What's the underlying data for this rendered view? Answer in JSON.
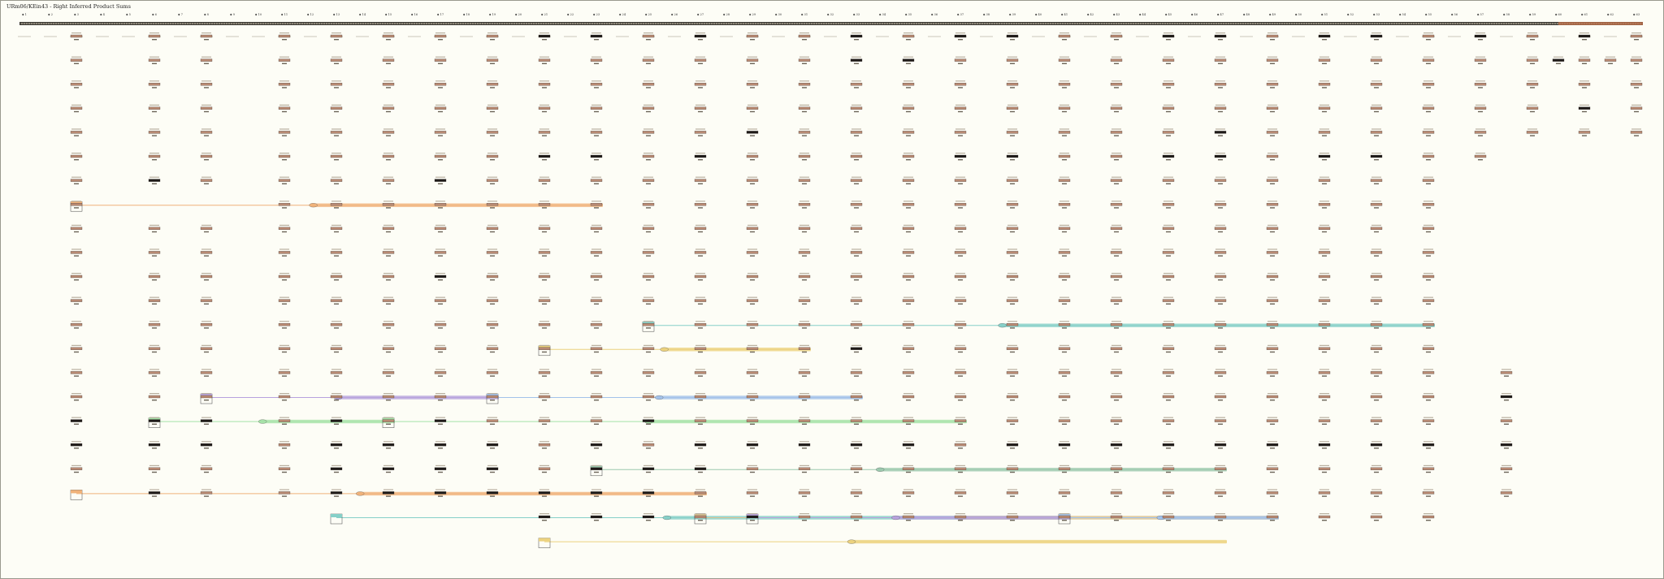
{
  "title": "URm06/KEin43 - Right Inferred Product Sums",
  "steps": [
    "1",
    "2",
    "3",
    "4",
    "5",
    "6",
    "7",
    "8",
    "9",
    "10",
    "11",
    "12",
    "13",
    "14",
    "15",
    "16",
    "17",
    "18",
    "19",
    "20",
    "21",
    "22",
    "23",
    "24",
    "25",
    "26",
    "27",
    "28",
    "29",
    "30",
    "31",
    "32",
    "33",
    "34",
    "35",
    "36",
    "37",
    "38",
    "39",
    "40",
    "41",
    "42",
    "43",
    "44",
    "45",
    "46",
    "47",
    "48",
    "49",
    "50",
    "51",
    "52",
    "53",
    "54",
    "55",
    "56",
    "57",
    "58",
    "59",
    "60",
    "61",
    "62",
    "63"
  ],
  "colors": {
    "background": "#fdfdf6",
    "ruler": "#6f6a5e",
    "ruler_highlight": "#c0704a",
    "cell_sum_default": "#b98a73",
    "cell_sum_zero": "#1e1a18",
    "orange": "#f0b27a",
    "teal": "#86d0c8",
    "yellow": "#ecd27e",
    "purple": "#b7a2dd",
    "blue": "#a3c2ea",
    "green": "#a6e2a8",
    "sage": "#9cc9ae",
    "tan": "#d8c190"
  },
  "rows": [
    {
      "row": 0,
      "cols": [
        2,
        5,
        7,
        10,
        12,
        14,
        16,
        18,
        20,
        22,
        24,
        26,
        28,
        30,
        32,
        34,
        36,
        38,
        40,
        42,
        44,
        46,
        48,
        50,
        52,
        54,
        56,
        58,
        60,
        62
      ],
      "dark": [
        20,
        22,
        26,
        32,
        36,
        38,
        44,
        46,
        50,
        52,
        56,
        60
      ]
    },
    {
      "row": 1,
      "cols": [
        2,
        5,
        7,
        10,
        12,
        14,
        16,
        18,
        20,
        22,
        24,
        26,
        28,
        30,
        32,
        34,
        36,
        38,
        40,
        42,
        44,
        46,
        48,
        50,
        52,
        54,
        56,
        58,
        59,
        60,
        61,
        62
      ],
      "dark": [
        32,
        34,
        59
      ]
    },
    {
      "row": 2,
      "cols": [
        2,
        5,
        7,
        10,
        12,
        14,
        16,
        18,
        20,
        22,
        24,
        26,
        28,
        30,
        32,
        34,
        36,
        38,
        40,
        42,
        44,
        46,
        48,
        50,
        52,
        54,
        56,
        58,
        60,
        62
      ],
      "dark": []
    },
    {
      "row": 3,
      "cols": [
        2,
        5,
        7,
        10,
        12,
        14,
        16,
        18,
        20,
        22,
        24,
        26,
        28,
        30,
        32,
        34,
        36,
        38,
        40,
        42,
        44,
        46,
        48,
        50,
        52,
        54,
        56,
        58,
        60,
        62
      ],
      "dark": [
        60
      ]
    },
    {
      "row": 4,
      "cols": [
        2,
        5,
        7,
        10,
        12,
        14,
        16,
        18,
        20,
        22,
        24,
        26,
        28,
        30,
        32,
        34,
        36,
        38,
        40,
        42,
        44,
        46,
        48,
        50,
        52,
        54,
        56,
        58,
        60,
        62
      ],
      "dark": [
        28,
        46
      ]
    },
    {
      "row": 5,
      "cols": [
        2,
        5,
        7,
        10,
        12,
        14,
        16,
        18,
        20,
        22,
        24,
        26,
        28,
        30,
        32,
        34,
        36,
        38,
        40,
        42,
        44,
        46,
        48,
        50,
        52,
        54,
        56
      ],
      "dark": [
        20,
        22,
        26,
        36,
        38,
        44,
        46,
        50,
        52
      ]
    },
    {
      "row": 6,
      "cols": [
        2,
        5,
        7,
        10,
        12,
        14,
        16,
        18,
        20,
        22,
        24,
        26,
        28,
        30,
        32,
        34,
        36,
        38,
        40,
        42,
        44,
        46,
        48,
        50,
        52,
        54
      ],
      "dark": [
        5,
        16
      ]
    },
    {
      "row": 7,
      "cols": [
        2,
        10,
        12,
        14,
        16,
        18,
        20,
        22,
        24,
        26,
        28,
        30,
        32,
        34,
        36,
        38,
        40,
        42,
        44,
        46,
        48,
        50,
        52,
        54
      ],
      "dark": []
    },
    {
      "row": 8,
      "cols": [
        2,
        5,
        7,
        10,
        12,
        14,
        16,
        18,
        20,
        22,
        24,
        26,
        28,
        30,
        32,
        34,
        36,
        38,
        40,
        42,
        44,
        46,
        48,
        50,
        52,
        54
      ],
      "dark": []
    },
    {
      "row": 9,
      "cols": [
        2,
        5,
        7,
        10,
        12,
        14,
        16,
        18,
        20,
        22,
        24,
        26,
        28,
        30,
        32,
        34,
        36,
        38,
        40,
        42,
        44,
        46,
        48,
        50,
        52,
        54
      ],
      "dark": []
    },
    {
      "row": 10,
      "cols": [
        2,
        5,
        7,
        10,
        12,
        14,
        16,
        18,
        20,
        22,
        24,
        26,
        28,
        30,
        32,
        34,
        36,
        38,
        40,
        42,
        44,
        46,
        48,
        50,
        52,
        54
      ],
      "dark": [
        16
      ]
    },
    {
      "row": 11,
      "cols": [
        2,
        5,
        7,
        10,
        12,
        14,
        16,
        18,
        20,
        22,
        24,
        26,
        28,
        30,
        32,
        34,
        36,
        38,
        40,
        42,
        44,
        46,
        48,
        50,
        52,
        54
      ],
      "dark": []
    },
    {
      "row": 12,
      "cols": [
        2,
        5,
        7,
        10,
        12,
        14,
        16,
        18,
        20,
        22,
        24,
        26,
        28,
        30,
        32,
        34,
        36,
        38,
        40,
        42,
        44,
        46,
        48,
        50,
        52,
        54
      ],
      "dark": []
    },
    {
      "row": 13,
      "cols": [
        2,
        5,
        7,
        10,
        12,
        14,
        16,
        18,
        20,
        22,
        24,
        26,
        28,
        30,
        32,
        34,
        36,
        38,
        40,
        42,
        44,
        46,
        48,
        50,
        52,
        54
      ],
      "dark": [
        32
      ]
    },
    {
      "row": 14,
      "cols": [
        2,
        5,
        7,
        10,
        12,
        14,
        16,
        18,
        20,
        22,
        24,
        26,
        28,
        30,
        32,
        34,
        36,
        38,
        40,
        42,
        44,
        46,
        48,
        50,
        52,
        54,
        57
      ],
      "dark": []
    },
    {
      "row": 15,
      "cols": [
        2,
        5,
        7,
        10,
        12,
        14,
        16,
        18,
        20,
        22,
        24,
        26,
        28,
        30,
        32,
        34,
        36,
        38,
        40,
        42,
        44,
        46,
        48,
        50,
        52,
        54,
        57
      ],
      "dark": [
        57
      ]
    },
    {
      "row": 16,
      "cols": [
        2,
        5,
        7,
        10,
        12,
        14,
        16,
        18,
        20,
        22,
        24,
        26,
        28,
        30,
        32,
        34,
        36,
        38,
        40,
        42,
        44,
        46,
        48,
        50,
        52,
        54,
        57
      ],
      "dark": [
        2,
        5,
        7,
        12,
        16,
        24
      ]
    },
    {
      "row": 17,
      "cols": [
        2,
        5,
        7,
        10,
        12,
        14,
        16,
        18,
        20,
        22,
        24,
        26,
        28,
        30,
        32,
        34,
        36,
        38,
        40,
        42,
        44,
        46,
        48,
        50,
        52,
        54,
        57
      ],
      "dark": [
        2,
        5,
        7,
        12,
        14,
        16,
        18,
        22,
        26,
        28,
        30,
        32,
        34,
        38,
        40,
        42,
        44,
        46,
        48,
        50,
        52,
        54,
        57
      ]
    },
    {
      "row": 18,
      "cols": [
        2,
        5,
        7,
        10,
        12,
        14,
        16,
        18,
        20,
        22,
        24,
        26,
        28,
        30,
        32,
        34,
        36,
        38,
        40,
        42,
        44,
        46,
        48,
        50,
        52,
        54,
        57
      ],
      "dark": [
        12,
        14,
        16,
        18,
        22,
        24,
        26
      ]
    },
    {
      "row": 19,
      "cols": [
        5,
        7,
        10,
        12,
        14,
        16,
        18,
        20,
        22,
        24,
        26,
        28,
        30,
        32,
        34,
        36,
        38,
        40,
        42,
        44,
        46,
        48,
        50,
        52,
        54,
        57
      ],
      "dark": [
        5,
        12,
        14,
        16,
        18,
        20,
        22,
        24
      ]
    },
    {
      "row": 20,
      "cols": [
        20,
        22,
        24,
        26,
        28,
        30,
        32,
        34,
        36,
        38,
        40,
        42,
        44,
        46,
        48,
        50,
        52,
        54
      ],
      "dark": [
        20,
        22,
        24,
        28
      ]
    }
  ],
  "ranges": [
    {
      "row": 7,
      "start": 2,
      "end": 22,
      "color": "orange",
      "box": true
    },
    {
      "row": 12,
      "start": 24,
      "end": 54,
      "color": "teal",
      "box": true
    },
    {
      "row": 13,
      "start": 20,
      "end": 30,
      "color": "yellow",
      "box": true
    },
    {
      "row": 15,
      "start": 7,
      "end": 18,
      "color": "purple",
      "box": true
    },
    {
      "row": 15,
      "start": 18,
      "end": 32,
      "color": "blue",
      "box": true
    },
    {
      "row": 16,
      "start": 5,
      "end": 14,
      "color": "green",
      "box": true
    },
    {
      "row": 16,
      "start": 14,
      "end": 36,
      "color": "green",
      "box": true
    },
    {
      "row": 18,
      "start": 22,
      "end": 46,
      "color": "sage",
      "box": true
    },
    {
      "row": 19,
      "start": 2,
      "end": 26,
      "color": "orange",
      "box": true
    },
    {
      "row": 20,
      "start": 12,
      "end": 40,
      "color": "teal",
      "box": true
    },
    {
      "row": 20,
      "start": 26,
      "end": 48,
      "color": "tan",
      "box": true
    },
    {
      "row": 20,
      "start": 28,
      "end": 40,
      "color": "purple",
      "box": true
    },
    {
      "row": 20,
      "start": 40,
      "end": 48,
      "color": "blue",
      "box": true
    },
    {
      "row": 21,
      "start": 20,
      "end": 46,
      "color": "yellow",
      "box": true
    }
  ]
}
